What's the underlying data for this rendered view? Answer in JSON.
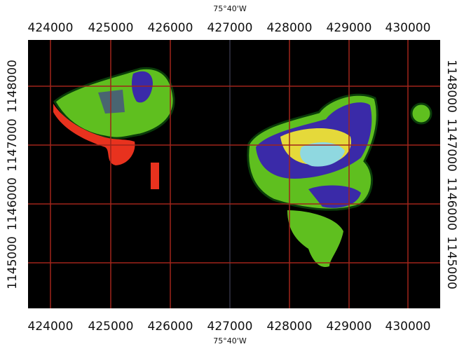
{
  "top_label": "75°40'W",
  "bottom_label": "75°40'W",
  "easting_labels": [
    "424000",
    "425000",
    "426000",
    "427000",
    "428000",
    "429000",
    "430000"
  ],
  "northing_labels": [
    "1148000",
    "1147000",
    "1146000",
    "1145000"
  ]
}
